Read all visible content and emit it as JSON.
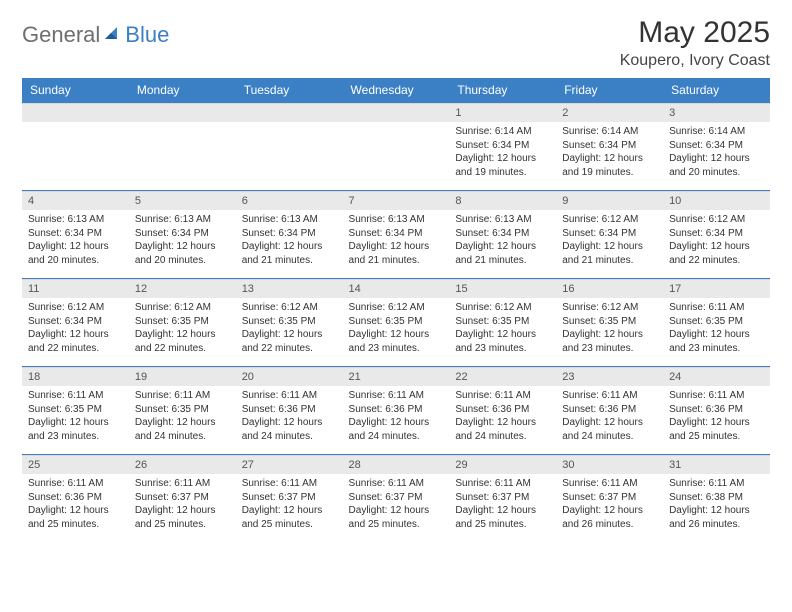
{
  "logo": {
    "text1": "General",
    "text2": "Blue",
    "accent": "#3b7fc4",
    "gray": "#6f6f6f"
  },
  "title": "May 2025",
  "location": "Koupero, Ivory Coast",
  "colors": {
    "header_bg": "#3b7fc4",
    "header_text": "#ffffff",
    "daynum_bg": "#e9e9e9",
    "cell_border": "#3b7fc4",
    "body_text": "#333333"
  },
  "weekdays": [
    "Sunday",
    "Monday",
    "Tuesday",
    "Wednesday",
    "Thursday",
    "Friday",
    "Saturday"
  ],
  "weeks": [
    [
      null,
      null,
      null,
      null,
      {
        "n": "1",
        "sunrise": "Sunrise: 6:14 AM",
        "sunset": "Sunset: 6:34 PM",
        "day1": "Daylight: 12 hours",
        "day2": "and 19 minutes."
      },
      {
        "n": "2",
        "sunrise": "Sunrise: 6:14 AM",
        "sunset": "Sunset: 6:34 PM",
        "day1": "Daylight: 12 hours",
        "day2": "and 19 minutes."
      },
      {
        "n": "3",
        "sunrise": "Sunrise: 6:14 AM",
        "sunset": "Sunset: 6:34 PM",
        "day1": "Daylight: 12 hours",
        "day2": "and 20 minutes."
      }
    ],
    [
      {
        "n": "4",
        "sunrise": "Sunrise: 6:13 AM",
        "sunset": "Sunset: 6:34 PM",
        "day1": "Daylight: 12 hours",
        "day2": "and 20 minutes."
      },
      {
        "n": "5",
        "sunrise": "Sunrise: 6:13 AM",
        "sunset": "Sunset: 6:34 PM",
        "day1": "Daylight: 12 hours",
        "day2": "and 20 minutes."
      },
      {
        "n": "6",
        "sunrise": "Sunrise: 6:13 AM",
        "sunset": "Sunset: 6:34 PM",
        "day1": "Daylight: 12 hours",
        "day2": "and 21 minutes."
      },
      {
        "n": "7",
        "sunrise": "Sunrise: 6:13 AM",
        "sunset": "Sunset: 6:34 PM",
        "day1": "Daylight: 12 hours",
        "day2": "and 21 minutes."
      },
      {
        "n": "8",
        "sunrise": "Sunrise: 6:13 AM",
        "sunset": "Sunset: 6:34 PM",
        "day1": "Daylight: 12 hours",
        "day2": "and 21 minutes."
      },
      {
        "n": "9",
        "sunrise": "Sunrise: 6:12 AM",
        "sunset": "Sunset: 6:34 PM",
        "day1": "Daylight: 12 hours",
        "day2": "and 21 minutes."
      },
      {
        "n": "10",
        "sunrise": "Sunrise: 6:12 AM",
        "sunset": "Sunset: 6:34 PM",
        "day1": "Daylight: 12 hours",
        "day2": "and 22 minutes."
      }
    ],
    [
      {
        "n": "11",
        "sunrise": "Sunrise: 6:12 AM",
        "sunset": "Sunset: 6:34 PM",
        "day1": "Daylight: 12 hours",
        "day2": "and 22 minutes."
      },
      {
        "n": "12",
        "sunrise": "Sunrise: 6:12 AM",
        "sunset": "Sunset: 6:35 PM",
        "day1": "Daylight: 12 hours",
        "day2": "and 22 minutes."
      },
      {
        "n": "13",
        "sunrise": "Sunrise: 6:12 AM",
        "sunset": "Sunset: 6:35 PM",
        "day1": "Daylight: 12 hours",
        "day2": "and 22 minutes."
      },
      {
        "n": "14",
        "sunrise": "Sunrise: 6:12 AM",
        "sunset": "Sunset: 6:35 PM",
        "day1": "Daylight: 12 hours",
        "day2": "and 23 minutes."
      },
      {
        "n": "15",
        "sunrise": "Sunrise: 6:12 AM",
        "sunset": "Sunset: 6:35 PM",
        "day1": "Daylight: 12 hours",
        "day2": "and 23 minutes."
      },
      {
        "n": "16",
        "sunrise": "Sunrise: 6:12 AM",
        "sunset": "Sunset: 6:35 PM",
        "day1": "Daylight: 12 hours",
        "day2": "and 23 minutes."
      },
      {
        "n": "17",
        "sunrise": "Sunrise: 6:11 AM",
        "sunset": "Sunset: 6:35 PM",
        "day1": "Daylight: 12 hours",
        "day2": "and 23 minutes."
      }
    ],
    [
      {
        "n": "18",
        "sunrise": "Sunrise: 6:11 AM",
        "sunset": "Sunset: 6:35 PM",
        "day1": "Daylight: 12 hours",
        "day2": "and 23 minutes."
      },
      {
        "n": "19",
        "sunrise": "Sunrise: 6:11 AM",
        "sunset": "Sunset: 6:35 PM",
        "day1": "Daylight: 12 hours",
        "day2": "and 24 minutes."
      },
      {
        "n": "20",
        "sunrise": "Sunrise: 6:11 AM",
        "sunset": "Sunset: 6:36 PM",
        "day1": "Daylight: 12 hours",
        "day2": "and 24 minutes."
      },
      {
        "n": "21",
        "sunrise": "Sunrise: 6:11 AM",
        "sunset": "Sunset: 6:36 PM",
        "day1": "Daylight: 12 hours",
        "day2": "and 24 minutes."
      },
      {
        "n": "22",
        "sunrise": "Sunrise: 6:11 AM",
        "sunset": "Sunset: 6:36 PM",
        "day1": "Daylight: 12 hours",
        "day2": "and 24 minutes."
      },
      {
        "n": "23",
        "sunrise": "Sunrise: 6:11 AM",
        "sunset": "Sunset: 6:36 PM",
        "day1": "Daylight: 12 hours",
        "day2": "and 24 minutes."
      },
      {
        "n": "24",
        "sunrise": "Sunrise: 6:11 AM",
        "sunset": "Sunset: 6:36 PM",
        "day1": "Daylight: 12 hours",
        "day2": "and 25 minutes."
      }
    ],
    [
      {
        "n": "25",
        "sunrise": "Sunrise: 6:11 AM",
        "sunset": "Sunset: 6:36 PM",
        "day1": "Daylight: 12 hours",
        "day2": "and 25 minutes."
      },
      {
        "n": "26",
        "sunrise": "Sunrise: 6:11 AM",
        "sunset": "Sunset: 6:37 PM",
        "day1": "Daylight: 12 hours",
        "day2": "and 25 minutes."
      },
      {
        "n": "27",
        "sunrise": "Sunrise: 6:11 AM",
        "sunset": "Sunset: 6:37 PM",
        "day1": "Daylight: 12 hours",
        "day2": "and 25 minutes."
      },
      {
        "n": "28",
        "sunrise": "Sunrise: 6:11 AM",
        "sunset": "Sunset: 6:37 PM",
        "day1": "Daylight: 12 hours",
        "day2": "and 25 minutes."
      },
      {
        "n": "29",
        "sunrise": "Sunrise: 6:11 AM",
        "sunset": "Sunset: 6:37 PM",
        "day1": "Daylight: 12 hours",
        "day2": "and 25 minutes."
      },
      {
        "n": "30",
        "sunrise": "Sunrise: 6:11 AM",
        "sunset": "Sunset: 6:37 PM",
        "day1": "Daylight: 12 hours",
        "day2": "and 26 minutes."
      },
      {
        "n": "31",
        "sunrise": "Sunrise: 6:11 AM",
        "sunset": "Sunset: 6:38 PM",
        "day1": "Daylight: 12 hours",
        "day2": "and 26 minutes."
      }
    ]
  ]
}
